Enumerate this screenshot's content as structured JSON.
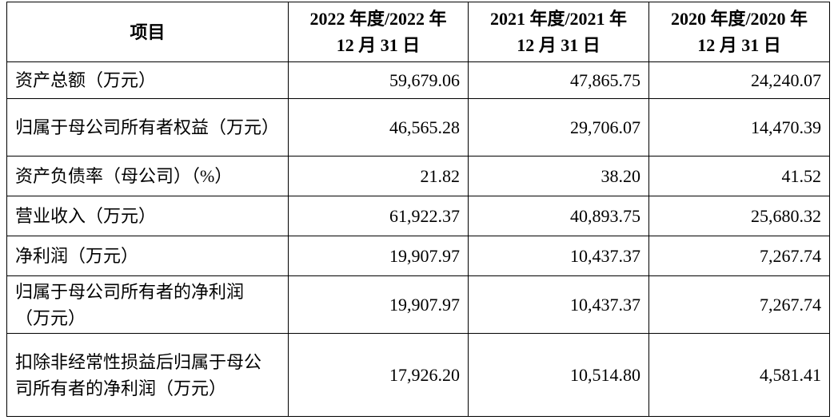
{
  "table": {
    "header": [
      [
        "项目"
      ],
      [
        "2022 年度/2022 年",
        "12 月 31 日"
      ],
      [
        "2021 年度/2021 年",
        "12 月 31 日"
      ],
      [
        "2020 年度/2020 年",
        "12 月 31 日"
      ]
    ],
    "rows": [
      [
        "资产总额（万元）",
        "59,679.06",
        "47,865.75",
        "24,240.07"
      ],
      [
        "归属于母公司所有者权益（万元）",
        "46,565.28",
        "29,706.07",
        "14,470.39"
      ],
      [
        "资产负债率（母公司）（%）",
        "21.82",
        "38.20",
        "41.52"
      ],
      [
        "营业收入（万元）",
        "61,922.37",
        "40,893.75",
        "25,680.32"
      ],
      [
        "净利润（万元）",
        "19,907.97",
        "10,437.37",
        "7,267.74"
      ],
      [
        "归属于母公司所有者的净利润（万元）",
        "19,907.97",
        "10,437.37",
        "7,267.74"
      ],
      [
        "扣除非经常性损益后归属于母公司所有者的净利润（万元）",
        "17,926.20",
        "10,514.80",
        "4,581.41"
      ]
    ]
  }
}
